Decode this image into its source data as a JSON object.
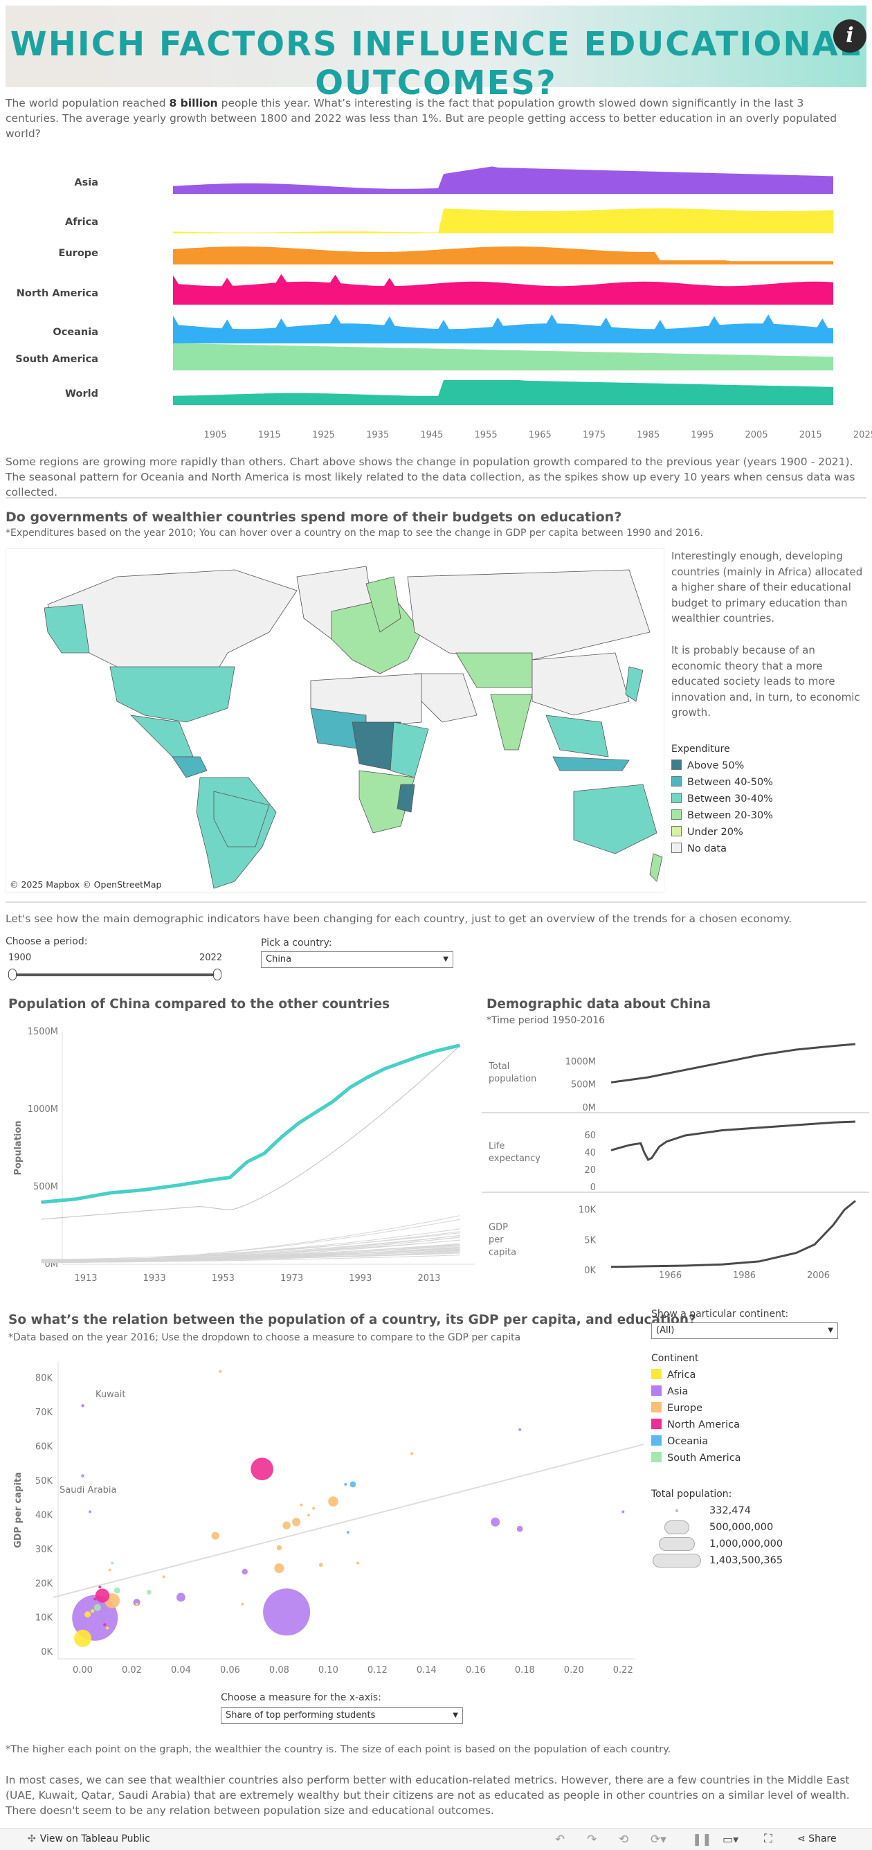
{
  "header": {
    "title": "WHICH FACTORS INFLUENCE EDUCATIONAL OUTCOMES?",
    "info_icon": "i"
  },
  "intro": {
    "before": "The world population reached ",
    "bold": "8 billion",
    "after": " people this year. What’s interesting is the fact that population growth slowed down significantly in the last 3 centuries. The average yearly growth between 1800 and 2022 was less than 1%. But are people getting access to better education in an overly populated world?"
  },
  "streams": {
    "rows": [
      {
        "label": "Asia",
        "color": "#9b59e8"
      },
      {
        "label": "Africa",
        "color": "#ffef3a"
      },
      {
        "label": "Europe",
        "color": "#f7962a"
      },
      {
        "label": "North America",
        "color": "#f7137f"
      },
      {
        "label": "Oceania",
        "color": "#33b0f5"
      },
      {
        "label": "South America",
        "color": "#94e4a8"
      },
      {
        "label": "World",
        "color": "#2bc4a2"
      }
    ],
    "ticks": [
      "1905",
      "1915",
      "1925",
      "1935",
      "1945",
      "1955",
      "1965",
      "1975",
      "1985",
      "1995",
      "2005",
      "2015",
      "2025"
    ]
  },
  "stream_caption": "Some regions are growing more rapidly than others. Chart above shows the change in population growth compared to the previous year (years 1900 - 2021). The seasonal pattern for Oceania and North America is most likely related to the data collection, as the spikes show up every 10 years when census data was collected.",
  "map": {
    "title": "Do governments of wealthier countries spend more of their budgets on education?",
    "subtitle": "*Expenditures based on the year 2010; You can hover over a country on the map to see the change in GDP per capita between 1990 and 2016.",
    "side_text_1": "Interestingly enough, developing countries (mainly in Africa) allocated a higher share of their educational budget to primary education than wealthier countries.",
    "side_text_2": "It is probably because of an economic theory that a more educated society leads to more innovation and, in turn, to economic growth.",
    "attribution": "© 2025 Mapbox  © OpenStreetMap",
    "legend_title": "Expenditure",
    "legend": [
      {
        "label": "Above 50%",
        "color": "#3e7d8c"
      },
      {
        "label": "Between 40-50%",
        "color": "#4fb5c0"
      },
      {
        "label": "Between 30-40%",
        "color": "#72d6c6"
      },
      {
        "label": "Between 20-30%",
        "color": "#a4e4a4"
      },
      {
        "label": "Under 20%",
        "color": "#d5f2a0"
      },
      {
        "label": "No data",
        "color": "#f0f0f0"
      }
    ]
  },
  "overview_text": "Let's see how the main demographic indicators have been changing for each country, just to get an overview of the trends for a chosen economy.",
  "controls": {
    "period_label": "Choose a period:",
    "period_start": "1900",
    "period_end": "2022",
    "country_label": "Pick a country:",
    "country_value": "China"
  },
  "pop_chart": {
    "title": "Population of China compared to the other countries",
    "ylabel": "Population",
    "yticks": [
      "1500M",
      "1000M",
      "500M",
      "0M"
    ],
    "xticks": [
      "1913",
      "1933",
      "1953",
      "1973",
      "1993",
      "2013"
    ]
  },
  "demo": {
    "title": "Demographic data about China",
    "subtitle": "*Time period 1950-2016",
    "rows": [
      {
        "label": "Total population",
        "ticks": [
          "1000M",
          "500M",
          "0M"
        ]
      },
      {
        "label": "Life expectancy",
        "ticks": [
          "60",
          "40",
          "20",
          "0"
        ]
      },
      {
        "label": "GDP per capita",
        "ticks": [
          "10K",
          "5K",
          "0K"
        ]
      }
    ],
    "xticks": [
      "1966",
      "1986",
      "2006"
    ]
  },
  "scatter": {
    "title": "So what’s the relation between the population of a country, its GDP per capita, and education?",
    "subtitle": "*Data based on the year 2016; Use the dropdown to choose a measure to compare to the GDP per capita",
    "ylabel": "GDP per capita",
    "yticks": [
      "80K",
      "70K",
      "60K",
      "50K",
      "40K",
      "30K",
      "20K",
      "10K",
      "0K"
    ],
    "xticks": [
      "0.00",
      "0.02",
      "0.04",
      "0.06",
      "0.08",
      "0.10",
      "0.12",
      "0.14",
      "0.16",
      "0.18",
      "0.20",
      "0.22"
    ],
    "annotations": [
      "Kuwait",
      "Saudi Arabia"
    ],
    "x_measure_label": "Choose a measure for the x-axis:",
    "x_measure_value": "Share of top performing students",
    "continent_filter_label": "Show a particular continent:",
    "continent_filter_value": "(All)",
    "legend_title": "Continent",
    "legend": [
      {
        "label": "Africa",
        "color": "#ffe835"
      },
      {
        "label": "Asia",
        "color": "#b57ef0"
      },
      {
        "label": "Europe",
        "color": "#f9bf74"
      },
      {
        "label": "North America",
        "color": "#ef2d93"
      },
      {
        "label": "Oceania",
        "color": "#5ab9f4"
      },
      {
        "label": "South America",
        "color": "#a4e7b0"
      }
    ],
    "size_title": "Total population:",
    "size_legend": [
      "332,474",
      "500,000,000",
      "1,000,000,000",
      "1,403,500,365"
    ]
  },
  "chart_data": {
    "type": "scatter",
    "title": "So what’s the relation between the population of a country, its GDP per capita, and education?",
    "xlabel": "Share of top performing students",
    "ylabel": "GDP per capita",
    "xlim": [
      -0.01,
      0.225
    ],
    "ylim": [
      -2000,
      85000
    ],
    "trendline": [
      [
        -0.012,
        16000
      ],
      [
        0.23,
        61000
      ]
    ],
    "points": [
      {
        "x": 0.005,
        "y": 10000,
        "pop": 1324000000,
        "continent": "Asia",
        "color": "#b57ef0"
      },
      {
        "x": 0.083,
        "y": 11700,
        "pop": 1403500365,
        "continent": "Asia",
        "color": "#b57ef0"
      },
      {
        "x": 0.073,
        "y": 53500,
        "pop": 323000000,
        "continent": "North America",
        "color": "#ef2d93"
      },
      {
        "x": 0.0,
        "y": 4000,
        "pop": 190000000,
        "continent": "Africa",
        "color": "#ffe835"
      },
      {
        "x": 0.008,
        "y": 16500,
        "pop": 127000000,
        "continent": "North America",
        "color": "#ef2d93"
      },
      {
        "x": 0.012,
        "y": 15000,
        "pop": 145000000,
        "continent": "Europe",
        "color": "#f9bf74"
      },
      {
        "x": 0.168,
        "y": 38000,
        "pop": 51000000,
        "continent": "Asia",
        "color": "#b57ef0"
      },
      {
        "x": 0.178,
        "y": 36000,
        "pop": 23000000,
        "continent": "Asia",
        "color": "#b57ef0"
      },
      {
        "x": 0.102,
        "y": 44000,
        "pop": 65000000,
        "continent": "Europe",
        "color": "#f9bf74"
      },
      {
        "x": 0.087,
        "y": 38000,
        "pop": 45000000,
        "continent": "Europe",
        "color": "#f9bf74"
      },
      {
        "x": 0.083,
        "y": 37000,
        "pop": 40000000,
        "continent": "Europe",
        "color": "#f9bf74"
      },
      {
        "x": 0.08,
        "y": 24500,
        "pop": 60000000,
        "continent": "Europe",
        "color": "#f9bf74"
      },
      {
        "x": 0.054,
        "y": 34000,
        "pop": 38000000,
        "continent": "Europe",
        "color": "#f9bf74"
      },
      {
        "x": 0.08,
        "y": 30500,
        "pop": 17000000,
        "continent": "Europe",
        "color": "#f9bf74"
      },
      {
        "x": 0.097,
        "y": 25500,
        "pop": 10000000,
        "continent": "Europe",
        "color": "#f9bf74"
      },
      {
        "x": 0.107,
        "y": 49000,
        "pop": 5000000,
        "continent": "Oceania",
        "color": "#5ab9f4"
      },
      {
        "x": 0.11,
        "y": 49000,
        "pop": 24000000,
        "continent": "Oceania",
        "color": "#5ab9f4"
      },
      {
        "x": 0.04,
        "y": 16000,
        "pop": 49000000,
        "continent": "Asia",
        "color": "#b57ef0"
      },
      {
        "x": 0.022,
        "y": 14500,
        "pop": 31000000,
        "continent": "Asia",
        "color": "#b57ef0"
      },
      {
        "x": 0.066,
        "y": 23500,
        "pop": 21000000,
        "continent": "Asia",
        "color": "#b57ef0"
      },
      {
        "x": 0.014,
        "y": 18000,
        "pop": 23000000,
        "continent": "South America",
        "color": "#a4e7b0"
      },
      {
        "x": 0.027,
        "y": 17500,
        "pop": 14000000,
        "continent": "South America",
        "color": "#a4e7b0"
      },
      {
        "x": 0.006,
        "y": 13000,
        "pop": 30000000,
        "continent": "South America",
        "color": "#a4e7b0"
      },
      {
        "x": 0.002,
        "y": 11000,
        "pop": 25000000,
        "continent": "Africa",
        "color": "#ffe835"
      },
      {
        "x": 0.0,
        "y": 51500,
        "pop": 6000000,
        "continent": "Asia",
        "color": "#b57ef0"
      },
      {
        "x": 0.0,
        "y": 72000,
        "pop": 4000000,
        "continent": "Asia",
        "color": "#b57ef0"
      },
      {
        "x": 0.0,
        "y": 72000,
        "pop": 3000000,
        "continent": "Asia",
        "color": "#b57ef0"
      },
      {
        "x": 0.003,
        "y": 41000,
        "pop": 3000000,
        "continent": "Asia",
        "color": "#b57ef0"
      },
      {
        "x": 0.178,
        "y": 65000,
        "pop": 1000000,
        "continent": "Asia",
        "color": "#b57ef0"
      },
      {
        "x": 0.22,
        "y": 41000,
        "pop": 332474,
        "continent": "Asia",
        "color": "#b57ef0"
      },
      {
        "x": 0.056,
        "y": 82000,
        "pop": 1000000,
        "continent": "Europe",
        "color": "#f9bf74"
      },
      {
        "x": 0.134,
        "y": 58000,
        "pop": 2000000,
        "continent": "Europe",
        "color": "#f9bf74"
      },
      {
        "x": 0.094,
        "y": 42000,
        "pop": 3000000,
        "continent": "Europe",
        "color": "#f9bf74"
      },
      {
        "x": 0.089,
        "y": 43000,
        "pop": 2000000,
        "continent": "Europe",
        "color": "#f9bf74"
      },
      {
        "x": 0.092,
        "y": 40000,
        "pop": 3000000,
        "continent": "Europe",
        "color": "#f9bf74"
      },
      {
        "x": 0.112,
        "y": 26000,
        "pop": 2000000,
        "continent": "Europe",
        "color": "#f9bf74"
      },
      {
        "x": 0.108,
        "y": 35000,
        "pop": 2000000,
        "continent": "Oceania",
        "color": "#5ab9f4"
      },
      {
        "x": 0.022,
        "y": 14000,
        "pop": 3000000,
        "continent": "Africa",
        "color": "#ffe835"
      },
      {
        "x": 0.033,
        "y": 22000,
        "pop": 2000000,
        "continent": "Europe",
        "color": "#f9bf74"
      },
      {
        "x": 0.012,
        "y": 26000,
        "pop": 2000000,
        "continent": "South America",
        "color": "#a4e7b0"
      },
      {
        "x": 0.011,
        "y": 24000,
        "pop": 2000000,
        "continent": "Europe",
        "color": "#f9bf74"
      },
      {
        "x": 0.007,
        "y": 19000,
        "pop": 3000000,
        "continent": "North America",
        "color": "#ef2d93"
      },
      {
        "x": 0.005,
        "y": 15500,
        "pop": 5000000,
        "continent": "North America",
        "color": "#ef2d93"
      },
      {
        "x": 0.009,
        "y": 8000,
        "pop": 6000000,
        "continent": "North America",
        "color": "#ef2d93"
      },
      {
        "x": 0.004,
        "y": 12000,
        "pop": 9000000,
        "continent": "Africa",
        "color": "#ffe835"
      },
      {
        "x": 0.01,
        "y": 7000,
        "pop": 5000000,
        "continent": "Africa",
        "color": "#ffe835"
      },
      {
        "x": 0.065,
        "y": 14000,
        "pop": 2000000,
        "continent": "Europe",
        "color": "#f9bf74"
      }
    ]
  },
  "footnote": "*The higher each point on the graph, the wealthier the country is. The size of each point is based on the population of each country.",
  "conclusion": [
    "In most cases, we can see that wealthier countries also perform better with education-related metrics. However, there are a few countries in the Middle East (UAE, Kuwait, Qatar, Saudi Arabia) that are extremely wealthy but their citizens are not as educated as people in other countries on a similar level of wealth.",
    "There doesn't seem to be any relation between population size and educational outcomes."
  ],
  "footer": {
    "view_label": "View on Tableau Public",
    "share_label": "Share"
  }
}
